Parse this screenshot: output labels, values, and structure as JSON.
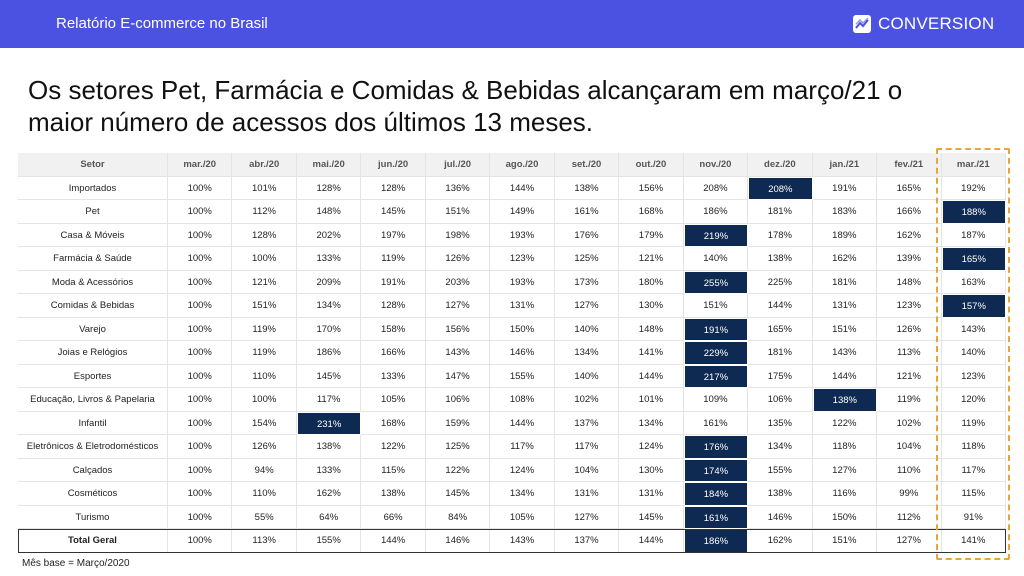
{
  "header": {
    "report": "Relatório E-commerce no Brasil",
    "brand": "CONVERSION"
  },
  "title": "Os setores Pet, Farmácia e Comidas & Bebidas alcançaram em março/21 o maior número de acessos dos últimos 13 meses.",
  "table": {
    "columns": [
      "Setor",
      "mar./20",
      "abr./20",
      "mai./20",
      "jun./20",
      "jul./20",
      "ago./20",
      "set./20",
      "out./20",
      "nov./20",
      "dez./20",
      "jan./21",
      "fev./21",
      "mar./21"
    ],
    "rows": [
      [
        "Importados",
        "100%",
        "101%",
        "128%",
        "128%",
        "136%",
        "144%",
        "138%",
        "156%",
        "208%",
        "208%",
        "191%",
        "165%",
        "192%"
      ],
      [
        "Pet",
        "100%",
        "112%",
        "148%",
        "145%",
        "151%",
        "149%",
        "161%",
        "168%",
        "186%",
        "181%",
        "183%",
        "166%",
        "188%"
      ],
      [
        "Casa & Móveis",
        "100%",
        "128%",
        "202%",
        "197%",
        "198%",
        "193%",
        "176%",
        "179%",
        "219%",
        "178%",
        "189%",
        "162%",
        "187%"
      ],
      [
        "Farmácia & Saúde",
        "100%",
        "100%",
        "133%",
        "119%",
        "126%",
        "123%",
        "125%",
        "121%",
        "140%",
        "138%",
        "162%",
        "139%",
        "165%"
      ],
      [
        "Moda & Acessórios",
        "100%",
        "121%",
        "209%",
        "191%",
        "203%",
        "193%",
        "173%",
        "180%",
        "255%",
        "225%",
        "181%",
        "148%",
        "163%"
      ],
      [
        "Comidas & Bebidas",
        "100%",
        "151%",
        "134%",
        "128%",
        "127%",
        "131%",
        "127%",
        "130%",
        "151%",
        "144%",
        "131%",
        "123%",
        "157%"
      ],
      [
        "Varejo",
        "100%",
        "119%",
        "170%",
        "158%",
        "156%",
        "150%",
        "140%",
        "148%",
        "191%",
        "165%",
        "151%",
        "126%",
        "143%"
      ],
      [
        "Joias e Relógios",
        "100%",
        "119%",
        "186%",
        "166%",
        "143%",
        "146%",
        "134%",
        "141%",
        "229%",
        "181%",
        "143%",
        "113%",
        "140%"
      ],
      [
        "Esportes",
        "100%",
        "110%",
        "145%",
        "133%",
        "147%",
        "155%",
        "140%",
        "144%",
        "217%",
        "175%",
        "144%",
        "121%",
        "123%"
      ],
      [
        "Educação, Livros & Papelaria",
        "100%",
        "100%",
        "117%",
        "105%",
        "106%",
        "108%",
        "102%",
        "101%",
        "109%",
        "106%",
        "138%",
        "119%",
        "120%"
      ],
      [
        "Infantil",
        "100%",
        "154%",
        "231%",
        "168%",
        "159%",
        "144%",
        "137%",
        "134%",
        "161%",
        "135%",
        "122%",
        "102%",
        "119%"
      ],
      [
        "Eletrônicos & Eletrodomésticos",
        "100%",
        "126%",
        "138%",
        "122%",
        "125%",
        "117%",
        "117%",
        "124%",
        "176%",
        "134%",
        "118%",
        "104%",
        "118%"
      ],
      [
        "Calçados",
        "100%",
        "94%",
        "133%",
        "115%",
        "122%",
        "124%",
        "104%",
        "130%",
        "174%",
        "155%",
        "127%",
        "110%",
        "117%"
      ],
      [
        "Cosméticos",
        "100%",
        "110%",
        "162%",
        "138%",
        "145%",
        "134%",
        "131%",
        "131%",
        "184%",
        "138%",
        "116%",
        "99%",
        "115%"
      ],
      [
        "Turismo",
        "100%",
        "55%",
        "64%",
        "66%",
        "84%",
        "105%",
        "127%",
        "145%",
        "161%",
        "146%",
        "150%",
        "112%",
        "91%"
      ],
      [
        "Total Geral",
        "100%",
        "113%",
        "155%",
        "144%",
        "146%",
        "143%",
        "137%",
        "144%",
        "186%",
        "162%",
        "151%",
        "127%",
        "141%"
      ]
    ]
  },
  "footnote": "Mês base = Março/2020"
}
